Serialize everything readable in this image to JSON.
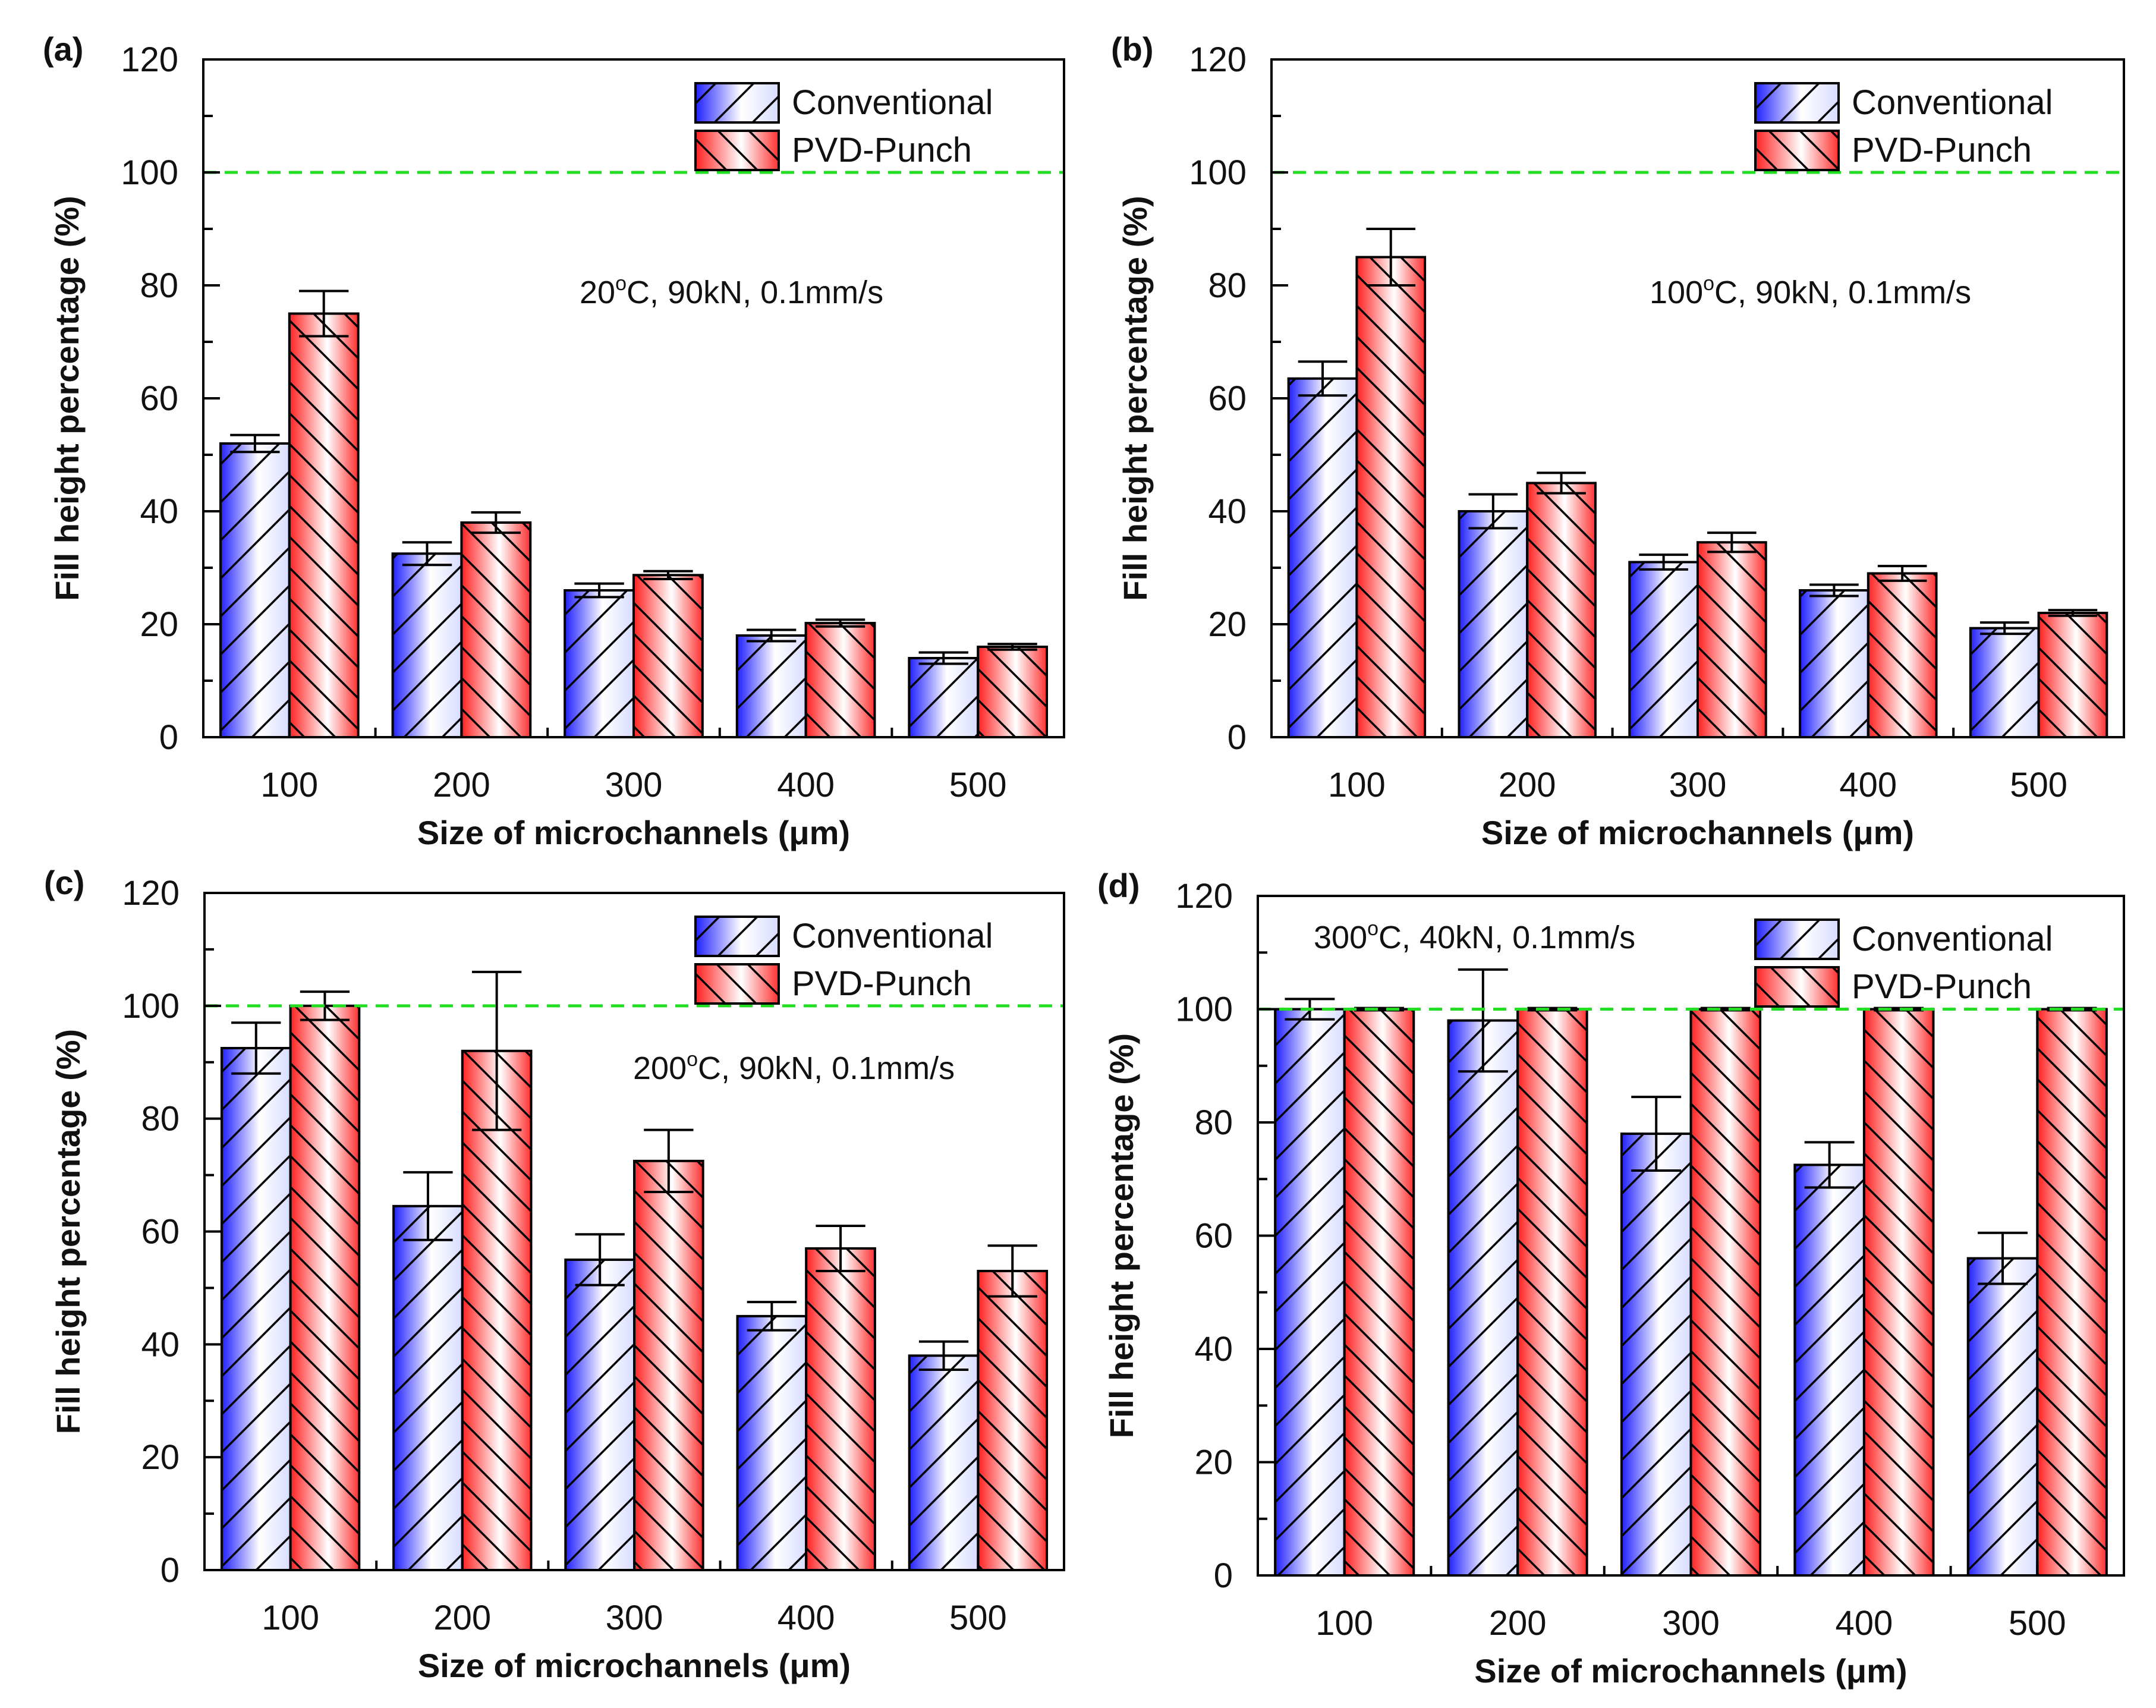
{
  "chart_data": [
    {
      "type": "bar",
      "panel_label": "(a)",
      "annotation": {
        "prefix": "20",
        "sup": "o",
        "suffix": "C, 90kN, 0.1mm/s",
        "placement": "upper-center"
      },
      "categories": [
        "100",
        "200",
        "300",
        "400",
        "500"
      ],
      "xlabel": "Size of microchannels (μm)",
      "ylabel": "Fill height percentage (%)",
      "ylim": [
        0,
        120
      ],
      "yticks": [
        0,
        20,
        40,
        60,
        80,
        100,
        120
      ],
      "reference_line": {
        "y": 100,
        "style": "dashed",
        "color": "#22dd22"
      },
      "legend": {
        "placement": "top-right"
      },
      "series": [
        {
          "name": "Conventional",
          "color": "#0000ff",
          "hatch": "forward",
          "values": [
            52,
            32.5,
            26,
            18,
            14
          ],
          "errors": [
            1.5,
            2,
            1.2,
            1,
            1
          ]
        },
        {
          "name": "PVD-Punch",
          "color": "#ff0000",
          "hatch": "backward",
          "values": [
            75,
            38,
            28.7,
            20.2,
            16
          ],
          "errors": [
            4,
            1.8,
            0.7,
            0.6,
            0.5
          ]
        }
      ]
    },
    {
      "type": "bar",
      "panel_label": "(b)",
      "annotation": {
        "prefix": "100",
        "sup": "o",
        "suffix": "C, 90kN, 0.1mm/s",
        "placement": "upper-center"
      },
      "categories": [
        "100",
        "200",
        "300",
        "400",
        "500"
      ],
      "xlabel": "Size of microchannels (μm)",
      "ylabel": "Fill height percentage (%)",
      "ylim": [
        0,
        120
      ],
      "yticks": [
        0,
        20,
        40,
        60,
        80,
        100,
        120
      ],
      "reference_line": {
        "y": 100,
        "style": "dashed",
        "color": "#22dd22"
      },
      "legend": {
        "placement": "top-right"
      },
      "series": [
        {
          "name": "Conventional",
          "color": "#0000ff",
          "hatch": "forward",
          "values": [
            63.5,
            40,
            31,
            26,
            19.3
          ],
          "errors": [
            3,
            3,
            1.3,
            1,
            1
          ]
        },
        {
          "name": "PVD-Punch",
          "color": "#ff0000",
          "hatch": "backward",
          "values": [
            85,
            45,
            34.5,
            29,
            22
          ],
          "errors": [
            5,
            1.8,
            1.7,
            1.3,
            0.5
          ]
        }
      ]
    },
    {
      "type": "bar",
      "panel_label": "(c)",
      "annotation": {
        "prefix": "200",
        "sup": "o",
        "suffix": "C, 90kN, 0.1mm/s",
        "placement": "upper-right"
      },
      "categories": [
        "100",
        "200",
        "300",
        "400",
        "500"
      ],
      "xlabel": "Size of microchannels (μm)",
      "ylabel": "Fill height percentage (%)",
      "ylim": [
        0,
        120
      ],
      "yticks": [
        0,
        20,
        40,
        60,
        80,
        100,
        120
      ],
      "reference_line": {
        "y": 100,
        "style": "dashed",
        "color": "#22dd22"
      },
      "legend": {
        "placement": "top-right"
      },
      "series": [
        {
          "name": "Conventional",
          "color": "#0000ff",
          "hatch": "forward",
          "values": [
            92.5,
            64.5,
            55,
            45,
            38
          ],
          "errors": [
            4.5,
            6,
            4.5,
            2.5,
            2.5
          ]
        },
        {
          "name": "PVD-Punch",
          "color": "#ff0000",
          "hatch": "backward",
          "values": [
            100,
            92,
            72.5,
            57,
            53
          ],
          "errors": [
            2.5,
            14,
            5.5,
            4,
            4.5
          ]
        }
      ]
    },
    {
      "type": "bar",
      "panel_label": "(d)",
      "annotation": {
        "prefix": "300",
        "sup": "o",
        "suffix": "C, 40kN, 0.1mm/s",
        "placement": "top-left"
      },
      "categories": [
        "100",
        "200",
        "300",
        "400",
        "500"
      ],
      "xlabel": "Size of microchannels (μm)",
      "ylabel": "Fill height percentage (%)",
      "ylim": [
        0,
        120
      ],
      "yticks": [
        0,
        20,
        40,
        60,
        80,
        100,
        120
      ],
      "reference_line": {
        "y": 100,
        "style": "dashed",
        "color": "#22dd22"
      },
      "legend": {
        "placement": "top-right"
      },
      "series": [
        {
          "name": "Conventional",
          "color": "#0000ff",
          "hatch": "forward",
          "values": [
            100,
            98,
            78,
            72.5,
            56
          ],
          "errors": [
            1.8,
            9,
            6.5,
            4,
            4.5
          ]
        },
        {
          "name": "PVD-Punch",
          "color": "#ff0000",
          "hatch": "backward",
          "values": [
            100,
            100,
            100,
            100,
            100
          ],
          "errors": [
            0.2,
            0.2,
            0.2,
            0.2,
            0.2
          ]
        }
      ]
    }
  ]
}
